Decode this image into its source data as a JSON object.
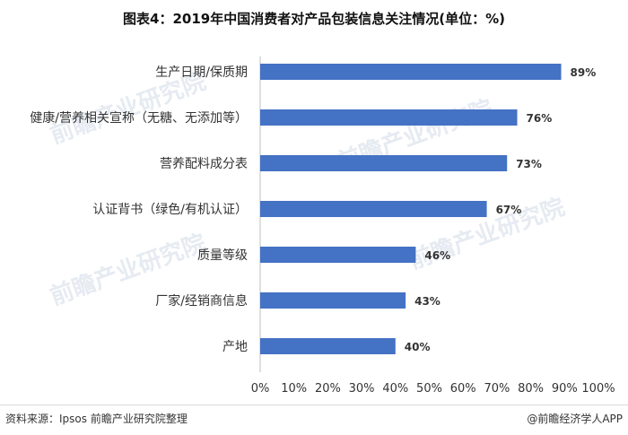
{
  "title": "图表4：2019年中国消费者对产品包装信息关注情况(单位：%)",
  "chart_data": {
    "type": "bar",
    "orientation": "horizontal",
    "categories": [
      "生产日期/保质期",
      "健康/营养相关宣称（无糖、无添加等）",
      "营养配料成分表",
      "认证背书（绿色/有机认证）",
      "质量等级",
      "厂家/经销商信息",
      "产地"
    ],
    "values": [
      89,
      76,
      73,
      67,
      46,
      43,
      40
    ],
    "value_labels": [
      "89%",
      "76%",
      "73%",
      "67%",
      "46%",
      "43%",
      "40%"
    ],
    "x_ticks": [
      "0%",
      "10%",
      "20%",
      "30%",
      "40%",
      "50%",
      "60%",
      "70%",
      "80%",
      "90%",
      "100%"
    ],
    "xlim": [
      0,
      100
    ],
    "bar_color": "#4472c4",
    "grid": false
  },
  "footer": {
    "source": "资料来源：Ipsos 前瞻产业研究院整理",
    "brand": "@前瞻经济学人APP"
  }
}
